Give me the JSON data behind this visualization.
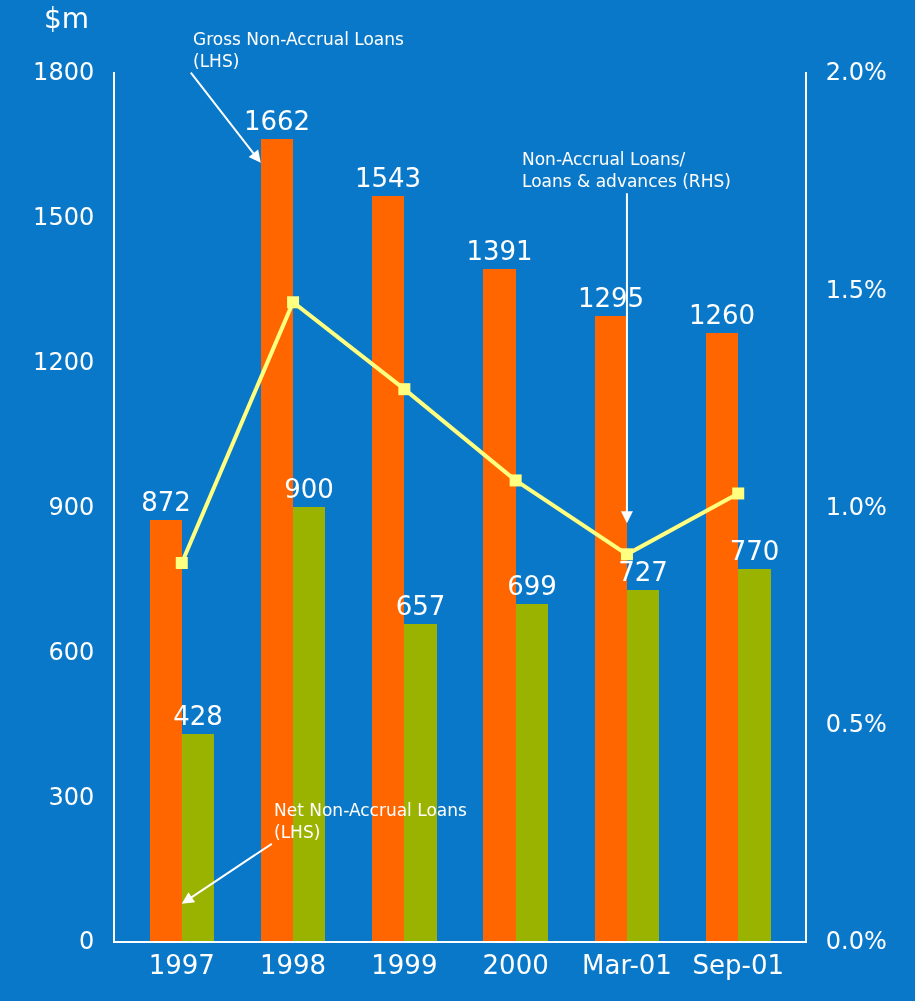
{
  "chart_data": {
    "type": "bar",
    "ylabel": "$m",
    "categories": [
      "1997",
      "1998",
      "1999",
      "2000",
      "Mar-01",
      "Sep-01"
    ],
    "series": [
      {
        "name": "Gross Non-Accrual Loans (LHS)",
        "color": "#ff6600",
        "values": [
          872,
          1662,
          1543,
          1391,
          1295,
          1260
        ],
        "value_labels": [
          "872",
          "1662",
          "1543",
          "1391",
          "1295",
          "1260"
        ]
      },
      {
        "name": "Net Non-Accrual Loans (LHS)",
        "color": "#99b300",
        "values": [
          428,
          900,
          657,
          699,
          727,
          770
        ],
        "value_labels": [
          "428",
          "900",
          "657",
          "699",
          "727",
          "770"
        ]
      },
      {
        "name": "Non-Accrual Loans/ Loans & advances (RHS)",
        "type": "line",
        "axis": "y2",
        "color": "#ffff80",
        "marker": "square",
        "values": [
          0.87,
          1.47,
          1.27,
          1.06,
          0.89,
          1.03
        ]
      }
    ],
    "ylim": [
      0,
      1800
    ],
    "yticks": [
      0,
      300,
      600,
      900,
      1200,
      1500,
      1800
    ],
    "y2lim": [
      0,
      2
    ],
    "y2ticks": [
      {
        "value": 0,
        "label": "0.0%"
      },
      {
        "value": 0.5,
        "label": "0.5%"
      },
      {
        "value": 1,
        "label": "1.0%"
      },
      {
        "value": 1.5,
        "label": "1.5%"
      },
      {
        "value": 2,
        "label": "2.0%"
      }
    ],
    "grid": false,
    "legend": false
  }
}
